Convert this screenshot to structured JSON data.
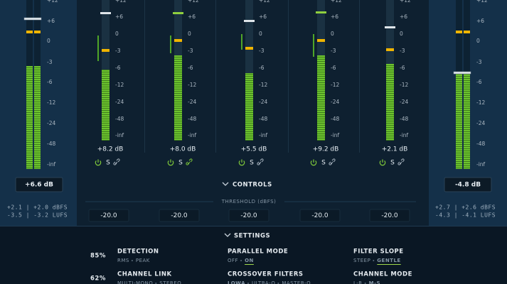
{
  "scale": [
    "+12",
    "+6",
    "0",
    "-3",
    "-6",
    "-12",
    "-24",
    "-48",
    "-inf"
  ],
  "input": {
    "gain": "+6.6 dB",
    "dbfs": "+2.1 | +2.0 dBFS",
    "lufs": "-3.5 | -3.2 LUFS"
  },
  "output": {
    "gain": "-4.8 dB",
    "dbfs": "+2.7 | +2.6 dBFS",
    "lufs": "-4.3 | -4.1 LUFS"
  },
  "solo_label": "S",
  "bands": [
    {
      "gain": "+8.2 dB",
      "threshold": "-20.0"
    },
    {
      "gain": "+8.0 dB",
      "threshold": "-20.0"
    },
    {
      "gain": "+5.5 dB",
      "threshold": "-20.0"
    },
    {
      "gain": "+9.2 dB",
      "threshold": "-20.0"
    },
    {
      "gain": "+2.1 dB",
      "threshold": "-20.0"
    }
  ],
  "controls_title": "CONTROLS",
  "threshold_title": "THRESHOLD (dBFS)",
  "settings": {
    "title": "SETTINGS",
    "percents": [
      "85%",
      "62%"
    ],
    "items": [
      {
        "title": "DETECTION",
        "options": [
          "RMS",
          "PEAK"
        ],
        "active": null
      },
      {
        "title": "PARALLEL MODE",
        "options": [
          "OFF",
          "ON"
        ],
        "active": 1
      },
      {
        "title": "FILTER SLOPE",
        "options": [
          "STEEP",
          "GENTLE"
        ],
        "active": 1
      },
      {
        "title": "CHANNEL LINK",
        "options": [
          "MULTI-MONO",
          "STEREO"
        ],
        "active": null
      },
      {
        "title": "CROSSOVER FILTERS",
        "options": [
          "LOWA",
          "ULTRA-Q",
          "MASTER-Q"
        ],
        "active": 0
      },
      {
        "title": "CHANNEL MODE",
        "options": [
          "L-R",
          "M-S"
        ],
        "active": 1
      }
    ]
  }
}
